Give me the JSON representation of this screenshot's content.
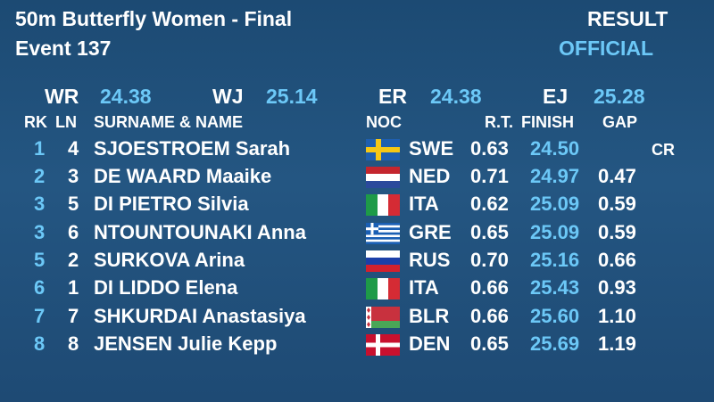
{
  "header": {
    "title": "50m Butterfly Women - Final",
    "event": "Event 137",
    "result": "RESULT",
    "status": "OFFICIAL"
  },
  "records": [
    {
      "label": "WR",
      "value": "24.38"
    },
    {
      "label": "WJ",
      "value": "25.14"
    },
    {
      "label": "ER",
      "value": "24.38"
    },
    {
      "label": "EJ",
      "value": "25.28"
    }
  ],
  "columns": [
    "RK",
    "LN",
    "SURNAME & NAME",
    "NOC",
    "R.T.",
    "FINISH",
    "GAP"
  ],
  "rows": [
    {
      "rank": "1",
      "lane": "4",
      "name": "SJOESTROEM Sarah",
      "noc": "SWE",
      "rt": "0.63",
      "finish": "24.50",
      "record": "CR"
    },
    {
      "rank": "2",
      "lane": "3",
      "name": "DE WAARD Maaike",
      "noc": "NED",
      "rt": "0.71",
      "finish": "24.97",
      "gap": "0.47"
    },
    {
      "rank": "3",
      "lane": "5",
      "name": "DI PIETRO Silvia",
      "noc": "ITA",
      "rt": "0.62",
      "finish": "25.09",
      "gap": "0.59"
    },
    {
      "rank": "3",
      "lane": "6",
      "name": "NTOUNTOUNAKI Anna",
      "noc": "GRE",
      "rt": "0.65",
      "finish": "25.09",
      "gap": "0.59"
    },
    {
      "rank": "5",
      "lane": "2",
      "name": "SURKOVA Arina",
      "noc": "RUS",
      "rt": "0.70",
      "finish": "25.16",
      "gap": "0.66"
    },
    {
      "rank": "6",
      "lane": "1",
      "name": "DI LIDDO Elena",
      "noc": "ITA",
      "rt": "0.66",
      "finish": "25.43",
      "gap": "0.93"
    },
    {
      "rank": "7",
      "lane": "7",
      "name": "SHKURDAI Anastasiya",
      "noc": "BLR",
      "rt": "0.66",
      "finish": "25.60",
      "gap": "1.10"
    },
    {
      "rank": "8",
      "lane": "8",
      "name": "JENSEN Julie Kepp",
      "noc": "DEN",
      "rt": "0.65",
      "finish": "25.69",
      "gap": "1.19"
    }
  ]
}
